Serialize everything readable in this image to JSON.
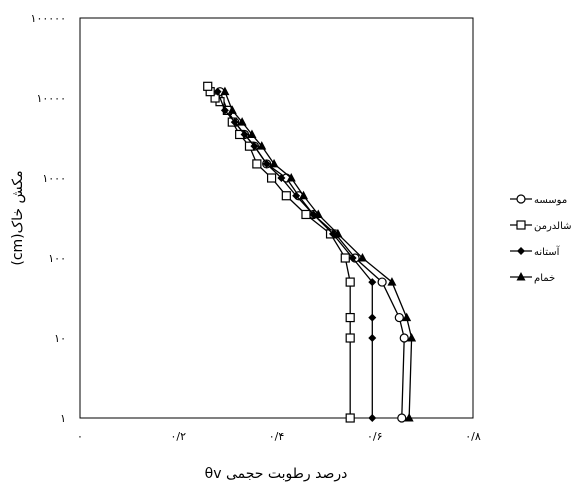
{
  "chart_data": {
    "type": "line",
    "title": "",
    "xlabel": "درصد رطوبت حجمی θv",
    "ylabel": "مکش خاک(cm)",
    "xlim": [
      0,
      0.8
    ],
    "ylim": [
      1,
      100000
    ],
    "yscale": "log",
    "grid": false,
    "legend_position": "right",
    "x_tick_labels": [
      "٠",
      "٠/٢",
      "٠/۴",
      "٠/۶",
      "٠/٨"
    ],
    "x_tick_values": [
      0,
      0.2,
      0.4,
      0.6,
      0.8
    ],
    "y_tick_labels": [
      "١",
      "١٠",
      "١٠٠",
      "١٠٠٠",
      "١٠٠٠٠",
      "١٠٠٠٠٠"
    ],
    "y_tick_values": [
      1,
      10,
      100,
      1000,
      10000,
      100000
    ],
    "series": [
      {
        "name": "موسسه",
        "marker": "circle-open",
        "x": [
          0.655,
          0.66,
          0.65,
          0.615,
          0.56,
          0.52,
          0.475,
          0.445,
          0.42,
          0.38,
          0.355,
          0.335,
          0.315,
          0.3,
          0.285
        ],
        "y": [
          1,
          10,
          18,
          50,
          100,
          200,
          350,
          600,
          1000,
          1500,
          2500,
          3500,
          5000,
          7000,
          12000
        ]
      },
      {
        "name": "شالدرمن",
        "marker": "square-open",
        "x": [
          0.55,
          0.55,
          0.55,
          0.55,
          0.54,
          0.51,
          0.46,
          0.42,
          0.39,
          0.36,
          0.345,
          0.325,
          0.31,
          0.3,
          0.285,
          0.275,
          0.265,
          0.26
        ],
        "y": [
          1,
          10,
          18,
          50,
          100,
          200,
          350,
          600,
          1000,
          1500,
          2500,
          3500,
          5000,
          7000,
          9000,
          10000,
          12000,
          14000
        ]
      },
      {
        "name": "آستانه",
        "marker": "diamond-filled",
        "x": [
          0.595,
          0.595,
          0.595,
          0.595,
          0.555,
          0.515,
          0.475,
          0.44,
          0.41,
          0.38,
          0.355,
          0.335,
          0.315,
          0.295,
          0.28
        ],
        "y": [
          1,
          10,
          18,
          50,
          100,
          200,
          350,
          600,
          1000,
          1500,
          2500,
          3500,
          5000,
          7000,
          12000
        ]
      },
      {
        "name": "خمام",
        "marker": "triangle-filled",
        "x": [
          0.67,
          0.675,
          0.665,
          0.635,
          0.575,
          0.525,
          0.485,
          0.455,
          0.43,
          0.395,
          0.37,
          0.35,
          0.33,
          0.31,
          0.295
        ],
        "y": [
          1,
          10,
          18,
          50,
          100,
          200,
          350,
          600,
          1000,
          1500,
          2500,
          3500,
          5000,
          7000,
          12000
        ]
      }
    ]
  }
}
